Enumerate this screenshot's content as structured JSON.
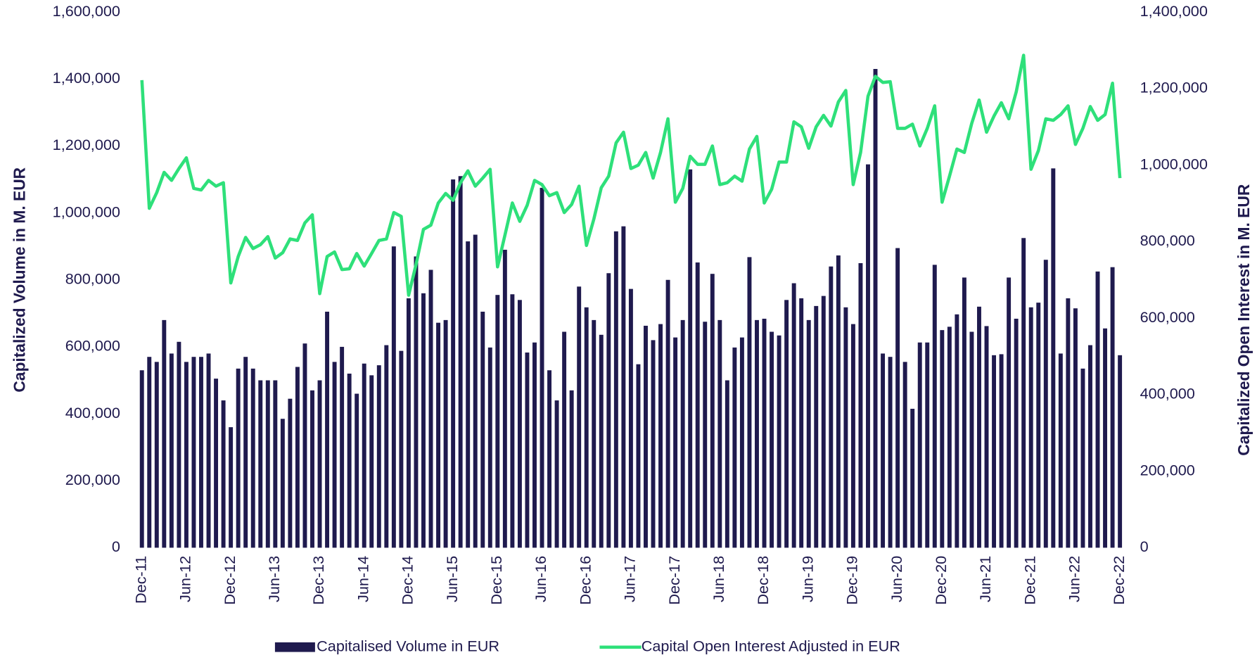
{
  "chart_data": {
    "type": "bar_line",
    "y_label": "Capitalized Volume in M. EUR",
    "y2_label": "Capitalized Open Interest in M. EUR",
    "categories": [
      "Dec-11",
      null,
      null,
      null,
      null,
      null,
      "Jun-12",
      null,
      null,
      null,
      null,
      null,
      "Dec-12",
      null,
      null,
      null,
      null,
      null,
      "Jun-13",
      null,
      null,
      null,
      null,
      null,
      "Dec-13",
      null,
      null,
      null,
      null,
      null,
      "Jun-14",
      null,
      null,
      null,
      null,
      null,
      "Dec-14",
      null,
      null,
      null,
      null,
      null,
      "Jun-15",
      null,
      null,
      null,
      null,
      null,
      "Dec-15",
      null,
      null,
      null,
      null,
      null,
      "Jun-16",
      null,
      null,
      null,
      null,
      null,
      "Dec-16",
      null,
      null,
      null,
      null,
      null,
      "Jun-17",
      null,
      null,
      null,
      null,
      null,
      "Dec-17",
      null,
      null,
      null,
      null,
      null,
      "Jun-18",
      null,
      null,
      null,
      null,
      null,
      "Dec-18",
      null,
      null,
      null,
      null,
      null,
      "Jun-19",
      null,
      null,
      null,
      null,
      null,
      "Dec-19",
      null,
      null,
      null,
      null,
      null,
      "Jun-20",
      null,
      null,
      null,
      null,
      null,
      "Dec-20",
      null,
      null,
      null,
      null,
      null,
      "Jun-21",
      null,
      null,
      null,
      null,
      null,
      "Dec-21",
      null,
      null,
      null,
      null,
      null,
      "Jun-22",
      null,
      null,
      null,
      null,
      null,
      "Dec-22"
    ],
    "series": [
      {
        "name": "Capitalised Volume in EUR",
        "type": "bar",
        "color": "#1f1a4e",
        "axis": "y",
        "values": [
          530000,
          570000,
          555000,
          680000,
          580000,
          615000,
          555000,
          570000,
          570000,
          580000,
          505000,
          440000,
          360000,
          535000,
          570000,
          535000,
          500000,
          500000,
          500000,
          385000,
          445000,
          540000,
          610000,
          470000,
          500000,
          705000,
          555000,
          600000,
          520000,
          460000,
          550000,
          515000,
          545000,
          605000,
          900000,
          588000,
          745000,
          870000,
          760000,
          830000,
          672000,
          680000,
          1100000,
          1110000,
          915000,
          935000,
          705000,
          598000,
          755000,
          890000,
          757000,
          740000,
          583000,
          613000,
          1075000,
          530000,
          440000,
          645000,
          470000,
          780000,
          718000,
          680000,
          636000,
          820000,
          945000,
          960000,
          773000,
          548000,
          663000,
          620000,
          668000,
          800000,
          628000,
          680000,
          1130000,
          852000,
          675000,
          818000,
          680000,
          500000,
          598000,
          628000,
          868000,
          680000,
          684000,
          645000,
          634000,
          740000,
          790000,
          745000,
          680000,
          722000,
          752000,
          840000,
          873000,
          718000,
          668000,
          850000,
          1145000,
          1430000,
          580000,
          570000,
          895000,
          555000,
          415000,
          613000,
          613000,
          845000,
          650000,
          660000,
          697000,
          807000,
          645000,
          720000,
          662000,
          575000,
          578000,
          807000,
          684000,
          925000,
          718000,
          732000,
          860000,
          1133000,
          580000,
          745000,
          715000,
          535000,
          605000,
          825000,
          655000,
          838000,
          575000
        ]
      },
      {
        "name": "Capital Open Interest Adjusted in EUR",
        "type": "line",
        "color": "#2ee07a",
        "axis": "y2",
        "values": [
          1222000,
          887000,
          928000,
          981000,
          960000,
          991000,
          1019000,
          939000,
          935000,
          960000,
          945000,
          954000,
          692000,
          761000,
          811000,
          782000,
          792000,
          813000,
          757000,
          771000,
          807000,
          803000,
          849000,
          870000,
          664000,
          761000,
          773000,
          727000,
          729000,
          769000,
          736000,
          769000,
          803000,
          807000,
          876000,
          866000,
          660000,
          740000,
          832000,
          843000,
          901000,
          926000,
          908000,
          954000,
          985000,
          945000,
          966000,
          989000,
          734000,
          817000,
          901000,
          853000,
          895000,
          960000,
          949000,
          920000,
          928000,
          876000,
          897000,
          945000,
          790000,
          859000,
          941000,
          971000,
          1058000,
          1086000,
          991000,
          1000000,
          1033000,
          966000,
          1033000,
          1121000,
          903000,
          939000,
          1023000,
          1002000,
          1002000,
          1050000,
          949000,
          954000,
          971000,
          958000,
          1042000,
          1075000,
          901000,
          937000,
          1008000,
          1008000,
          1113000,
          1100000,
          1044000,
          1100000,
          1130000,
          1102000,
          1165000,
          1195000,
          949000,
          1033000,
          1180000,
          1232000,
          1216000,
          1218000,
          1096000,
          1096000,
          1107000,
          1050000,
          1096000,
          1155000,
          903000,
          971000,
          1042000,
          1033000,
          1109000,
          1170000,
          1086000,
          1128000,
          1163000,
          1121000,
          1191000,
          1287000,
          989000,
          1038000,
          1121000,
          1117000,
          1132000,
          1155000,
          1054000,
          1096000,
          1153000,
          1117000,
          1132000,
          1214000,
          966000
        ]
      }
    ],
    "ylim": [
      0,
      1600000
    ],
    "yticks": [
      0,
      {
        "value": 200000,
        "label": "200,000"
      },
      {
        "value": 400000,
        "label": "400,000"
      },
      {
        "value": 600000,
        "label": "600,000"
      },
      {
        "value": 800000,
        "label": "800,000"
      },
      {
        "value": 1000000,
        "label": "1,000,000"
      },
      {
        "value": 1200000,
        "label": "1,200,000"
      },
      {
        "value": 1400000,
        "label": "1,400,000"
      },
      {
        "value": 1600000,
        "label": "1,600,000"
      }
    ],
    "y2lim": [
      0,
      1400000
    ],
    "y2ticks": [
      0,
      {
        "value": 200000,
        "label": "200,000"
      },
      {
        "value": 400000,
        "label": "400,000"
      },
      {
        "value": 600000,
        "label": "600,000"
      },
      {
        "value": 800000,
        "label": "800,000"
      },
      {
        "value": 1000000,
        "label": "1,000,000"
      },
      {
        "value": 1200000,
        "label": "1,200,000"
      },
      {
        "value": 1400000,
        "label": "1,400,000"
      }
    ],
    "legend": "bottom"
  }
}
